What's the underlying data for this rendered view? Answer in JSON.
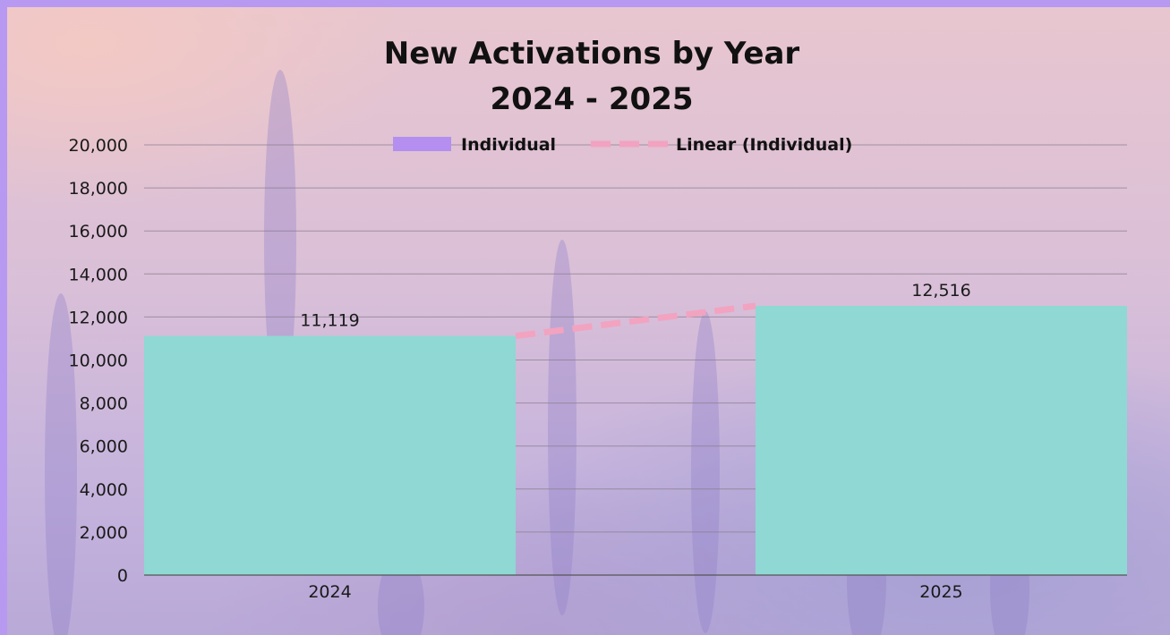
{
  "chart_data": {
    "type": "bar",
    "title": "New Activations by Year",
    "subtitle": "2024 - 2025",
    "categories": [
      "2024",
      "2025"
    ],
    "series": [
      {
        "name": "Individual",
        "values": [
          11119,
          12516
        ]
      }
    ],
    "data_labels": [
      "11,119",
      "12,516"
    ],
    "trendline": {
      "name": "Linear (Individual)",
      "type": "linear",
      "series": "Individual"
    },
    "ylim": [
      0,
      20000
    ],
    "yticks": [
      0,
      2000,
      4000,
      6000,
      8000,
      10000,
      12000,
      14000,
      16000,
      18000,
      20000
    ],
    "ytick_labels": [
      "0",
      "2,000",
      "4,000",
      "6,000",
      "8,000",
      "10,000",
      "12,000",
      "14,000",
      "16,000",
      "18,000",
      "20,000"
    ],
    "grid": true,
    "legend_position": "top",
    "colors": {
      "bar": "#8fd8d3",
      "legend_swatch": "#b48ff0",
      "trendline": "#f2a3c0",
      "border": "#b799f2"
    }
  }
}
